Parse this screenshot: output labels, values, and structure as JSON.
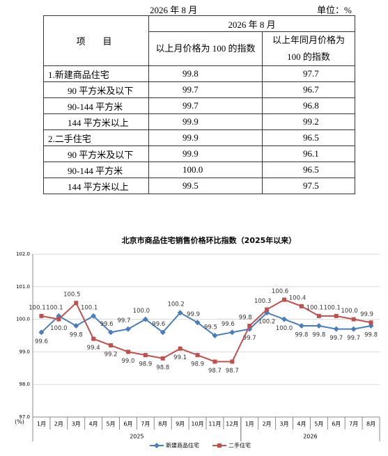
{
  "table": {
    "caption": "2026 年 8 月",
    "unit": "单位：%",
    "header": {
      "item": "项　目",
      "period": "2026 年 8 月",
      "columns": [
        "以上月价格为 100 的指数",
        "以上年同月价格为 100 的指数"
      ]
    },
    "groups": [
      {
        "label": "1.新建商品住宅",
        "values": [
          "99.8",
          "97.7"
        ],
        "rows": [
          {
            "label": "90 平方米及以下",
            "values": [
              "99.7",
              "96.7"
            ]
          },
          {
            "label": "90-144 平方米",
            "values": [
              "99.7",
              "96.8"
            ]
          },
          {
            "label": "144 平方米以上",
            "values": [
              "99.9",
              "99.2"
            ]
          }
        ]
      },
      {
        "label": "2.二手住宅",
        "values": [
          "99.9",
          "96.5"
        ],
        "rows": [
          {
            "label": "90 平方米及以下",
            "values": [
              "99.9",
              "96.1"
            ]
          },
          {
            "label": "90-144 平方米",
            "values": [
              "100.0",
              "96.5"
            ]
          },
          {
            "label": "144 平方米以上",
            "values": [
              "99.5",
              "97.5"
            ]
          }
        ]
      }
    ]
  },
  "chart_data": {
    "type": "line",
    "title": "北京市商品住宅销售价格环比指数（2025年以来）",
    "ylabel": "(%)",
    "groups": [
      {
        "label": "2025",
        "categories": [
          "1月",
          "2月",
          "3月",
          "4月",
          "5月",
          "6月",
          "7月",
          "8月",
          "9月",
          "10月",
          "11月",
          "12月"
        ]
      },
      {
        "label": "2026",
        "categories": [
          "1月",
          "2月",
          "3月",
          "4月",
          "5月",
          "6月",
          "7月",
          "8月"
        ]
      }
    ],
    "ylim": [
      97,
      102
    ],
    "yticks": [
      {
        "value": 97,
        "label": "97.0"
      },
      {
        "value": 98,
        "label": "98.0"
      },
      {
        "value": 99,
        "label": "99.0"
      },
      {
        "value": 100,
        "label": "100.0"
      },
      {
        "value": 101,
        "label": "101.0"
      },
      {
        "value": 102,
        "label": "102.0"
      }
    ],
    "grid": true,
    "legend": "bottom",
    "series": [
      {
        "name": "新建商品住宅",
        "color": "#4a7ebb",
        "marker": "diamond",
        "values": [
          99.6,
          100.1,
          99.8,
          100.1,
          99.6,
          99.7,
          100,
          99.6,
          100.2,
          99.9,
          99.5,
          99.6,
          99.7,
          100.2,
          100,
          99.8,
          99.8,
          99.7,
          99.7,
          99.8
        ],
        "value_labels": [
          "99.6",
          "100.1",
          "99.8",
          "100.1",
          "99.6",
          "99.7",
          "100.0",
          "99.6",
          "100.2",
          "99.9",
          "99.5",
          "99.6",
          "99.7",
          "100.2",
          "100.0",
          "99.8",
          "99.8",
          "99.7",
          "99.7",
          "99.8"
        ]
      },
      {
        "name": "二手住宅",
        "color": "#c0504d",
        "marker": "square",
        "values": [
          100.1,
          100,
          100.5,
          99.4,
          99.2,
          99,
          98.9,
          98.8,
          99.1,
          98.9,
          98.7,
          98.7,
          99.8,
          100.3,
          100.6,
          100.4,
          100.1,
          100.1,
          100,
          99.9
        ],
        "value_labels": [
          "100.1",
          "100.0",
          "100.5",
          "99.4",
          "99.2",
          "99.0",
          "98.9",
          "98.8",
          "99.1",
          "98.9",
          "98.7",
          "98.7",
          "99.8",
          "100.3",
          "100.6",
          "100.4",
          "100.1",
          "100.1",
          "100.0",
          "99.9"
        ]
      }
    ]
  }
}
